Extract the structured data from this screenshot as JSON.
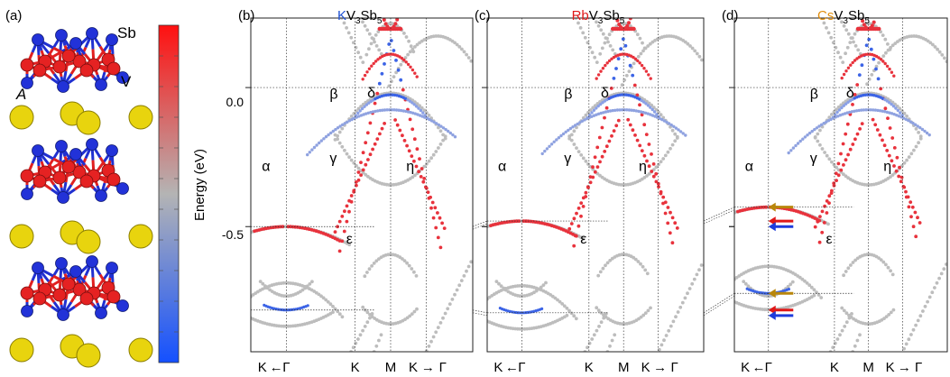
{
  "panel_a": {
    "label": "(a)",
    "atom_labels": {
      "sb": "Sb",
      "v": "V",
      "a": "A"
    },
    "colorbar_colors": [
      "#ff1010",
      "#b4b4b4",
      "#1450ff"
    ]
  },
  "shared": {
    "ylabel": "Energy (eV)",
    "ytick_labels": [
      "0.0",
      "-0.5"
    ]
  },
  "colors": {
    "k_text": "#1e50d2",
    "rb_text": "#e01818",
    "cs_text": "#e08c0a",
    "red_band": "#e8323c",
    "blue_band": "#3c64e6",
    "gray_band": "#bdbdbd",
    "arrow_gold": "#b8860b",
    "arrow_red": "#e01818",
    "arrow_blue": "#1e3cdc"
  },
  "chart_data": [
    {
      "type": "line",
      "label": "(b)",
      "title_prefix": "K",
      "title_rest": "V",
      "sub1": "3",
      "mid": "Sb",
      "sub2": "5",
      "band_labels": [
        "α",
        "β",
        "γ",
        "δ",
        "ε",
        "η"
      ],
      "xlabels": [
        "K",
        "←",
        "Γ",
        "K",
        "M",
        "K",
        "→",
        "Γ"
      ],
      "ylim": [
        -0.95,
        0.25
      ],
      "yticks": [
        0.0,
        -0.5
      ],
      "alpha_band_minimum": -0.5,
      "lower_gamma_level": -0.8
    },
    {
      "type": "line",
      "label": "(c)",
      "title_prefix": "Rb",
      "title_rest": "V",
      "sub1": "3",
      "mid": "Sb",
      "sub2": "5",
      "band_labels": [
        "α",
        "β",
        "γ",
        "δ",
        "ε",
        "η"
      ],
      "xlabels": [
        "K",
        "←",
        "Γ",
        "K",
        "M",
        "K",
        "→",
        "Γ"
      ],
      "ylim": [
        -0.95,
        0.25
      ],
      "yticks": [
        0.0,
        -0.5
      ],
      "alpha_band_minimum": -0.48,
      "lower_gamma_level": -0.81
    },
    {
      "type": "line",
      "label": "(d)",
      "title_prefix": "Cs",
      "title_rest": "V",
      "sub1": "3",
      "mid": "Sb",
      "sub2": "5",
      "band_labels": [
        "α",
        "β",
        "γ",
        "δ",
        "ε",
        "η"
      ],
      "xlabels": [
        "K",
        "←",
        "Γ",
        "K",
        "M",
        "K",
        "→",
        "Γ"
      ],
      "ylim": [
        -0.95,
        0.25
      ],
      "yticks": [
        0.0,
        -0.5
      ],
      "alpha_band_minimum": -0.43,
      "lower_gamma_level": -0.74
    }
  ]
}
